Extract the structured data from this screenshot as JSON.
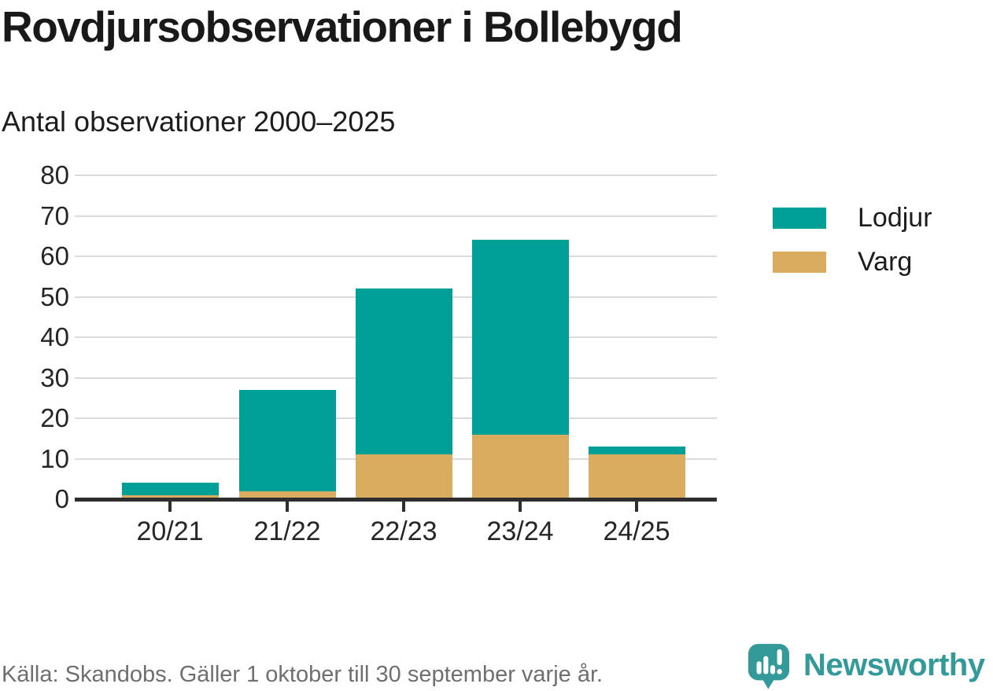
{
  "page": {
    "title": "Rovdjursobservationer i Bollebygd",
    "subtitle": "Antal observationer 2000–2025",
    "source_note": "Källa: Skandobs. Gäller 1 oktober till 30 september varje år.",
    "brand": {
      "name": "Newsworthy",
      "icon": "newsworthy-speech-bubble-bar-chart-icon"
    }
  },
  "colors": {
    "lodjur": "#00A097",
    "varg": "#D9AC60",
    "gridline": "#DBDBDB",
    "axis": "#2E2E2E",
    "text_dark": "#191919",
    "text_muted": "#6F6F6F",
    "brand_teal": "#339A99"
  },
  "chart_data": {
    "type": "bar",
    "stacked": true,
    "title": "Rovdjursobservationer i Bollebygd",
    "subtitle": "Antal observationer 2000–2025",
    "categories": [
      "20/21",
      "21/22",
      "22/23",
      "23/24",
      "24/25"
    ],
    "series": [
      {
        "name": "Lodjur",
        "color": "#00A097",
        "values": [
          3,
          25,
          41,
          48,
          2
        ]
      },
      {
        "name": "Varg",
        "color": "#D9AC60",
        "values": [
          1,
          2,
          11,
          16,
          11
        ]
      }
    ],
    "stack_order": [
      "Varg",
      "Lodjur"
    ],
    "stacked_totals": [
      4,
      27,
      52,
      64,
      13
    ],
    "xlabel": "",
    "ylabel": "",
    "ylim": [
      0,
      80
    ],
    "yticks": [
      0,
      10,
      20,
      30,
      40,
      50,
      60,
      70,
      80
    ],
    "grid": true,
    "legend_position": "right",
    "legend_entries": [
      "Lodjur",
      "Varg"
    ]
  }
}
